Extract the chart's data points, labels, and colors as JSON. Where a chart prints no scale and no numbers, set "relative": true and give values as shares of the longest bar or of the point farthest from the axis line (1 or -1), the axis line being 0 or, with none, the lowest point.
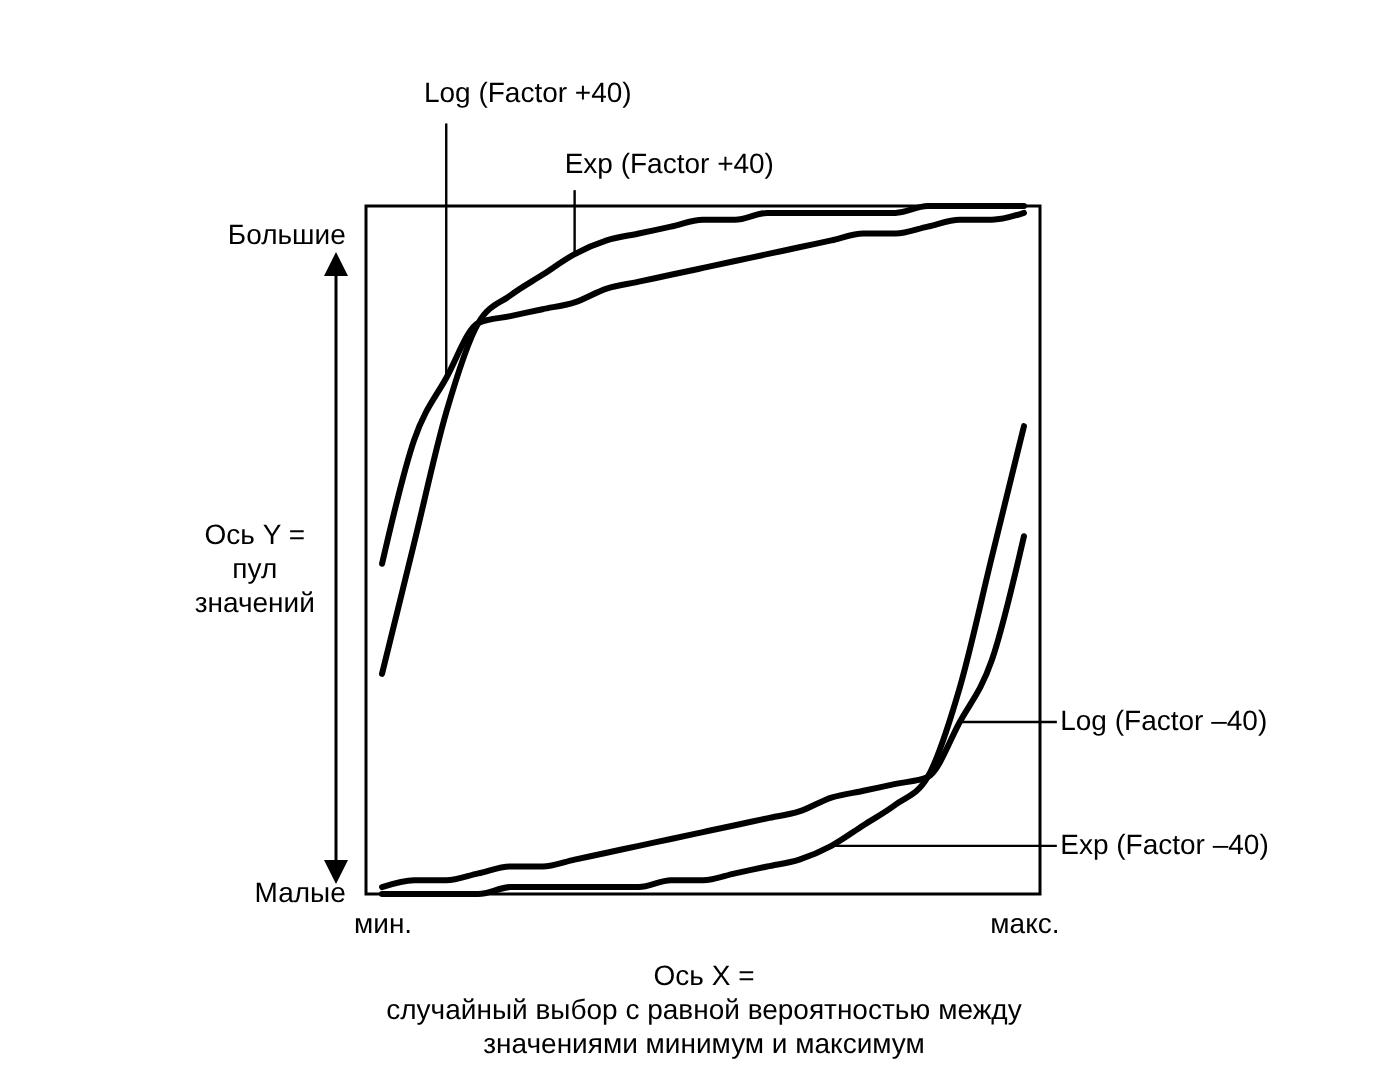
{
  "chart_data": {
    "type": "line",
    "relative": true,
    "xlabel": "Ось X =\nслучайный выбор с равной вероятностью между\nзначениями минимум и максимум",
    "ylabel": "Ось Y =\nпул\nзначений",
    "categories": [
      "мин.",
      null,
      null,
      null,
      null,
      null,
      null,
      null,
      null,
      null,
      null,
      null,
      null,
      null,
      null,
      null,
      null,
      null,
      null,
      null,
      "макс."
    ],
    "annotations": [
      "Большие",
      "Малые"
    ],
    "series": [
      {
        "name": "Log (Factor +40)",
        "color": "#000000",
        "values": [
          0.48,
          0.66,
          0.75,
          0.83,
          0.84,
          0.85,
          0.86,
          0.88,
          0.89,
          0.9,
          0.91,
          0.92,
          0.93,
          0.94,
          0.95,
          0.96,
          0.96,
          0.97,
          0.98,
          0.98,
          0.99
        ]
      },
      {
        "name": "Exp (Factor +40)",
        "color": "#000000",
        "values": [
          0.32,
          0.51,
          0.7,
          0.83,
          0.87,
          0.9,
          0.93,
          0.95,
          0.96,
          0.97,
          0.98,
          0.98,
          0.99,
          0.99,
          0.99,
          0.99,
          0.99,
          1,
          1,
          1,
          1
        ]
      },
      {
        "name": "Log (Factor –40)",
        "color": "#000000",
        "values": [
          0.01,
          0.02,
          0.02,
          0.03,
          0.04,
          0.04,
          0.05,
          0.06,
          0.07,
          0.08,
          0.09,
          0.1,
          0.11,
          0.12,
          0.14,
          0.15,
          0.16,
          0.17,
          0.25,
          0.34,
          0.52
        ]
      },
      {
        "name": "Exp (Factor –40)",
        "color": "#000000",
        "values": [
          0,
          0,
          0,
          0,
          0.01,
          0.01,
          0.01,
          0.01,
          0.01,
          0.02,
          0.02,
          0.03,
          0.04,
          0.05,
          0.07,
          0.1,
          0.13,
          0.17,
          0.3,
          0.49,
          0.68
        ]
      }
    ]
  }
}
